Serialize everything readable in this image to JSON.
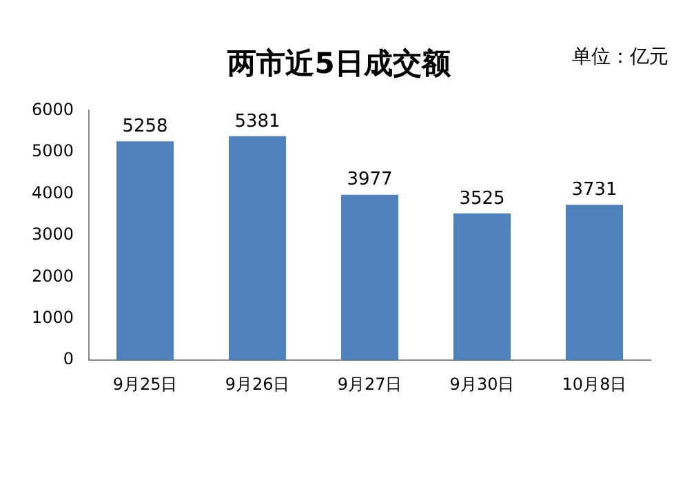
{
  "chart_data": {
    "type": "bar",
    "title": "两市近5日成交额",
    "annotations": [
      "单位：亿元"
    ],
    "categories": [
      "9月25日",
      "9月26日",
      "9月27日",
      "9月30日",
      "10月8日"
    ],
    "values": [
      5258,
      5381,
      3977,
      3525,
      3731
    ],
    "color": "#4f81bd",
    "ylim": [
      0,
      6000
    ],
    "yticks": [
      0,
      1000,
      2000,
      3000,
      4000,
      5000,
      6000
    ],
    "grid": false,
    "data_labels": true
  }
}
